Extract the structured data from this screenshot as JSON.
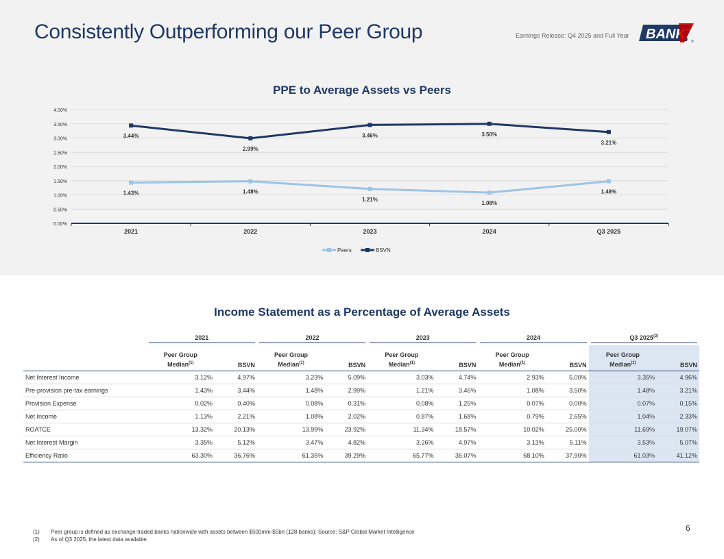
{
  "header": {
    "title": "Consistently Outperforming our Peer Group",
    "release_note": "Earnings Release: Q4 2025 and Full Year",
    "logo_text": "BANK7",
    "logo_mark": "®"
  },
  "colors": {
    "navy": "#1f3864",
    "peers": "#9dc3e6",
    "highlight": "#dce6f2"
  },
  "chart_data": {
    "type": "line",
    "title": "PPE to Average Assets vs Peers",
    "categories": [
      "2021",
      "2022",
      "2023",
      "2024",
      "Q3 2025"
    ],
    "series": [
      {
        "name": "Peers",
        "values": [
          1.43,
          1.48,
          1.21,
          1.08,
          1.48
        ],
        "labels": [
          "1.43%",
          "1.48%",
          "1.21%",
          "1.08%",
          "1.48%"
        ],
        "color": "#9dc3e6"
      },
      {
        "name": "BSVN",
        "values": [
          3.44,
          2.99,
          3.46,
          3.5,
          3.21
        ],
        "labels": [
          "3.44%",
          "2.99%",
          "3.46%",
          "3.50%",
          "3.21%"
        ],
        "color": "#1f3864"
      }
    ],
    "y_ticks": [
      "0.00%",
      "0.50%",
      "1.00%",
      "1.50%",
      "2.00%",
      "2.50%",
      "3.00%",
      "3.50%",
      "4.00%"
    ],
    "ylim": [
      0,
      4
    ],
    "grid": true,
    "legend": "bottom-center"
  },
  "table": {
    "title": "Income Statement as a Percentage of Average Assets",
    "years": [
      "2021",
      "2022",
      "2023",
      "2024",
      "Q3 2025"
    ],
    "year_last_sup": "(2)",
    "col_median_line1": "Peer Group",
    "col_median_line2": "Median",
    "col_median_sup": "(1)",
    "col_bsvn": "BSVN",
    "rows": [
      {
        "label": "Net Interest Income",
        "values": [
          "3.12%",
          "4.97%",
          "3.23%",
          "5.09%",
          "3.03%",
          "4.74%",
          "2.93%",
          "5.00%",
          "3.35%",
          "4.96%"
        ]
      },
      {
        "label": "Pre-provision pre-tax earnings",
        "values": [
          "1.43%",
          "3.44%",
          "1.48%",
          "2.99%",
          "1.21%",
          "3.46%",
          "1.08%",
          "3.50%",
          "1.48%",
          "3.21%"
        ]
      },
      {
        "label": "Provision Expense",
        "values": [
          "0.02%",
          "0.40%",
          "0.08%",
          "0.31%",
          "0.08%",
          "1.25%",
          "0.07%",
          "0.00%",
          "0.07%",
          "0.15%"
        ]
      },
      {
        "label": "Net Income",
        "values": [
          "1.13%",
          "2.21%",
          "1.08%",
          "2.02%",
          "0.87%",
          "1.68%",
          "0.79%",
          "2.65%",
          "1.04%",
          "2.33%"
        ]
      },
      {
        "label": "ROATCE",
        "values": [
          "13.32%",
          "20.13%",
          "13.99%",
          "23.92%",
          "11.34%",
          "18.57%",
          "10.02%",
          "25.00%",
          "11.69%",
          "19.07%"
        ]
      },
      {
        "label": "Net Interest Margin",
        "values": [
          "3.35%",
          "5.12%",
          "3.47%",
          "4.82%",
          "3.26%",
          "4.97%",
          "3.13%",
          "5.11%",
          "3.53%",
          "5.07%"
        ]
      },
      {
        "label": "Efficiency Ratio",
        "values": [
          "63.30%",
          "36.76%",
          "61.35%",
          "39.29%",
          "65.77%",
          "36.07%",
          "68.10%",
          "37.90%",
          "61.03%",
          "41.12%"
        ]
      }
    ]
  },
  "footnotes": [
    {
      "num": "(1)",
      "text": "Peer group is defined as exchange-traded banks nationwide with assets between $500mm-$5bn (128 banks); Source: S&P Global Market Intelligence"
    },
    {
      "num": "(2)",
      "text": "As of Q3 2025, the latest data available."
    }
  ],
  "page_number": "6"
}
